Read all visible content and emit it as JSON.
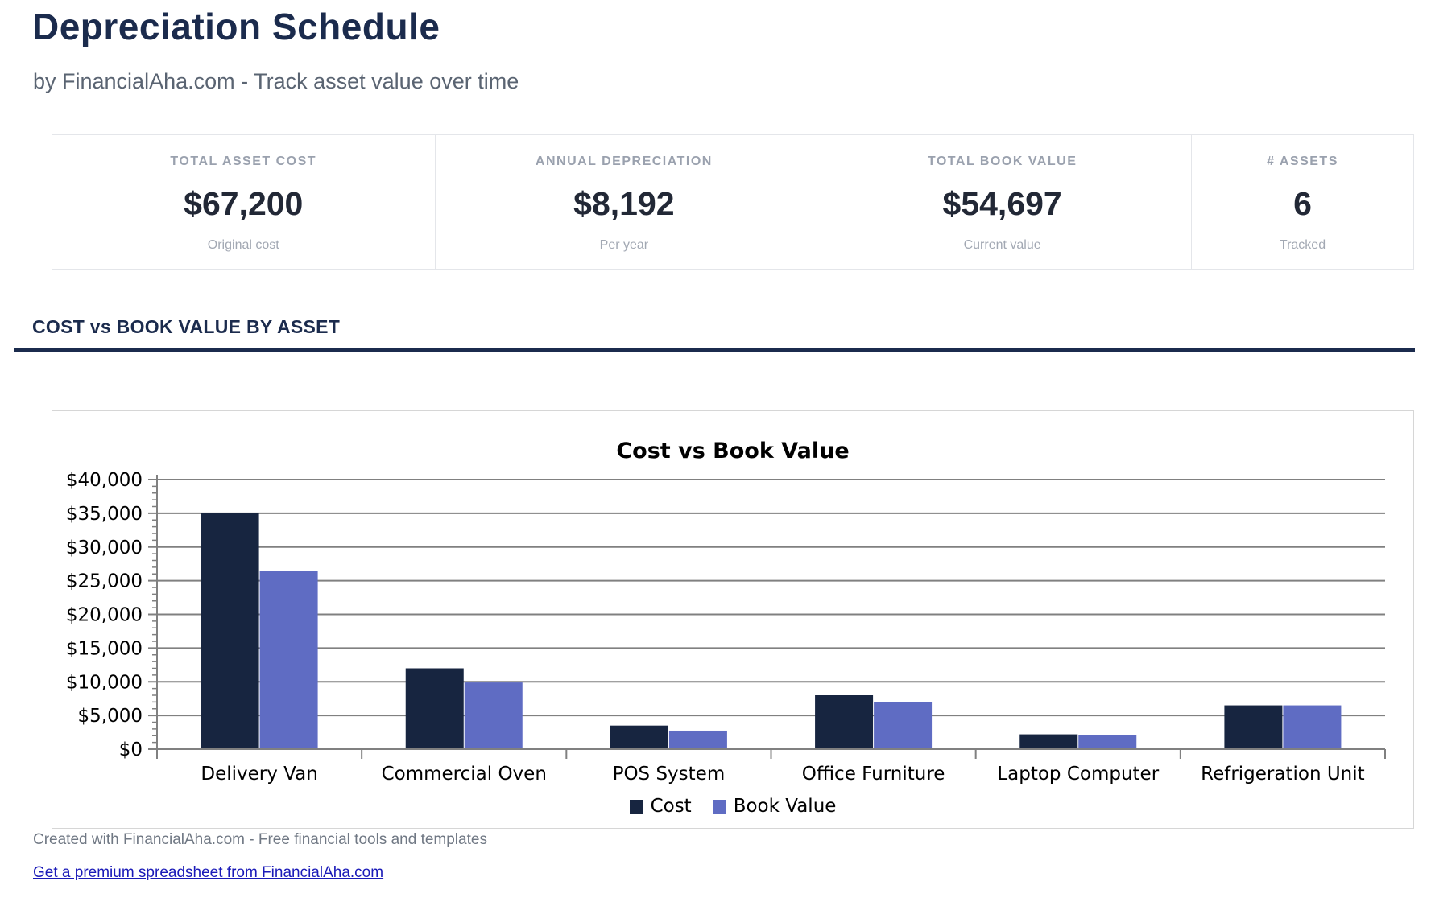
{
  "header": {
    "title": "Depreciation Schedule",
    "subtitle": "by FinancialAha.com - Track asset value over time"
  },
  "stats": [
    {
      "label": "TOTAL ASSET COST",
      "value": "$67,200",
      "sublabel": "Original cost"
    },
    {
      "label": "ANNUAL DEPRECIATION",
      "value": "$8,192",
      "sublabel": "Per year"
    },
    {
      "label": "TOTAL BOOK VALUE",
      "value": "$54,697",
      "sublabel": "Current value"
    },
    {
      "label": "# ASSETS",
      "value": "6",
      "sublabel": "Tracked"
    }
  ],
  "section": {
    "title": "COST vs BOOK VALUE BY ASSET"
  },
  "chart_data": {
    "type": "bar",
    "title": "Cost vs Book Value",
    "categories": [
      "Delivery Van",
      "Commercial Oven",
      "POS System",
      "Office Furniture",
      "Laptop Computer",
      "Refrigeration Unit"
    ],
    "series": [
      {
        "name": "Cost",
        "color": "#172540",
        "values": [
          35000,
          12000,
          3500,
          8000,
          2200,
          6500
        ]
      },
      {
        "name": "Book Value",
        "color": "#5F6CC3",
        "values": [
          26447,
          9900,
          2750,
          7000,
          2100,
          6500
        ]
      }
    ],
    "ylim": [
      0,
      40000
    ],
    "ytick_interval": 5000,
    "minor_tick_interval": 1000,
    "tick_prefix": "$",
    "grid": true,
    "legend_position": "bottom",
    "colors": {
      "gridline": "#808080",
      "axis": "#808080",
      "text": "#000000"
    }
  },
  "footer": {
    "credit": "Created with FinancialAha.com - Free financial tools and templates",
    "link": "Get a premium spreadsheet from FinancialAha.com"
  }
}
